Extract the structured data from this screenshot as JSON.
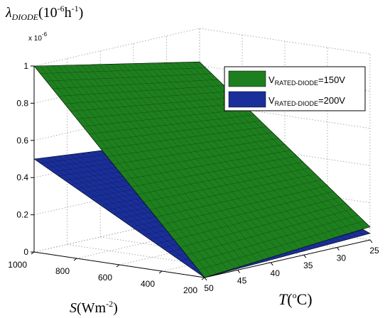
{
  "chart_data": {
    "type": "surface",
    "title": "",
    "zlabel": {
      "symbol": "λ",
      "subscript": "DIODE",
      "unit_prefix": "(10",
      "unit_exp": "-6",
      "unit_h": "h",
      "unit_hexp": "-1",
      "unit_close": ")"
    },
    "z_multiplier": {
      "prefix": "x 10",
      "exp": "-6"
    },
    "xlabel": {
      "symbol": "S",
      "unit": "(Wm",
      "exp": "-2",
      "close": ")"
    },
    "ylabel": {
      "symbol": "T",
      "unit": "(",
      "exp": "o",
      "close": "C)"
    },
    "x_axis": {
      "name": "S",
      "range": [
        200,
        1000
      ],
      "ticks": [
        "1000",
        "800",
        "600",
        "400",
        "200"
      ]
    },
    "y_axis": {
      "name": "T",
      "range": [
        25,
        50
      ],
      "ticks": [
        "25",
        "30",
        "35",
        "40",
        "45",
        "50"
      ]
    },
    "z_axis": {
      "range": [
        0,
        1
      ],
      "ticks": [
        "0",
        "0.2",
        "0.4",
        "0.6",
        "0.8",
        "1"
      ]
    },
    "grid": true,
    "legend_position": "top-right",
    "series": [
      {
        "name": "V_RATED-DIODE=150V",
        "legend_main": "V",
        "legend_sub": "RATED-DIODE",
        "legend_tail": "=150V",
        "color": "#1e7f1e",
        "corners": [
          {
            "S": 1000,
            "T": 50,
            "z": 1.0
          },
          {
            "S": 1000,
            "T": 25,
            "z": 0.82
          },
          {
            "S": 200,
            "T": 25,
            "z": 0.07
          },
          {
            "S": 200,
            "T": 50,
            "z": 0.0
          }
        ]
      },
      {
        "name": "V_RATED-DIODE=200V",
        "legend_main": "V",
        "legend_sub": "RATED-DIODE",
        "legend_tail": "=200V",
        "color": "#1a2f9a",
        "corners": [
          {
            "S": 1000,
            "T": 50,
            "z": 0.5
          },
          {
            "S": 1000,
            "T": 25,
            "z": 0.41
          },
          {
            "S": 200,
            "T": 25,
            "z": 0.035
          },
          {
            "S": 200,
            "T": 50,
            "z": 0.0
          }
        ]
      }
    ]
  }
}
